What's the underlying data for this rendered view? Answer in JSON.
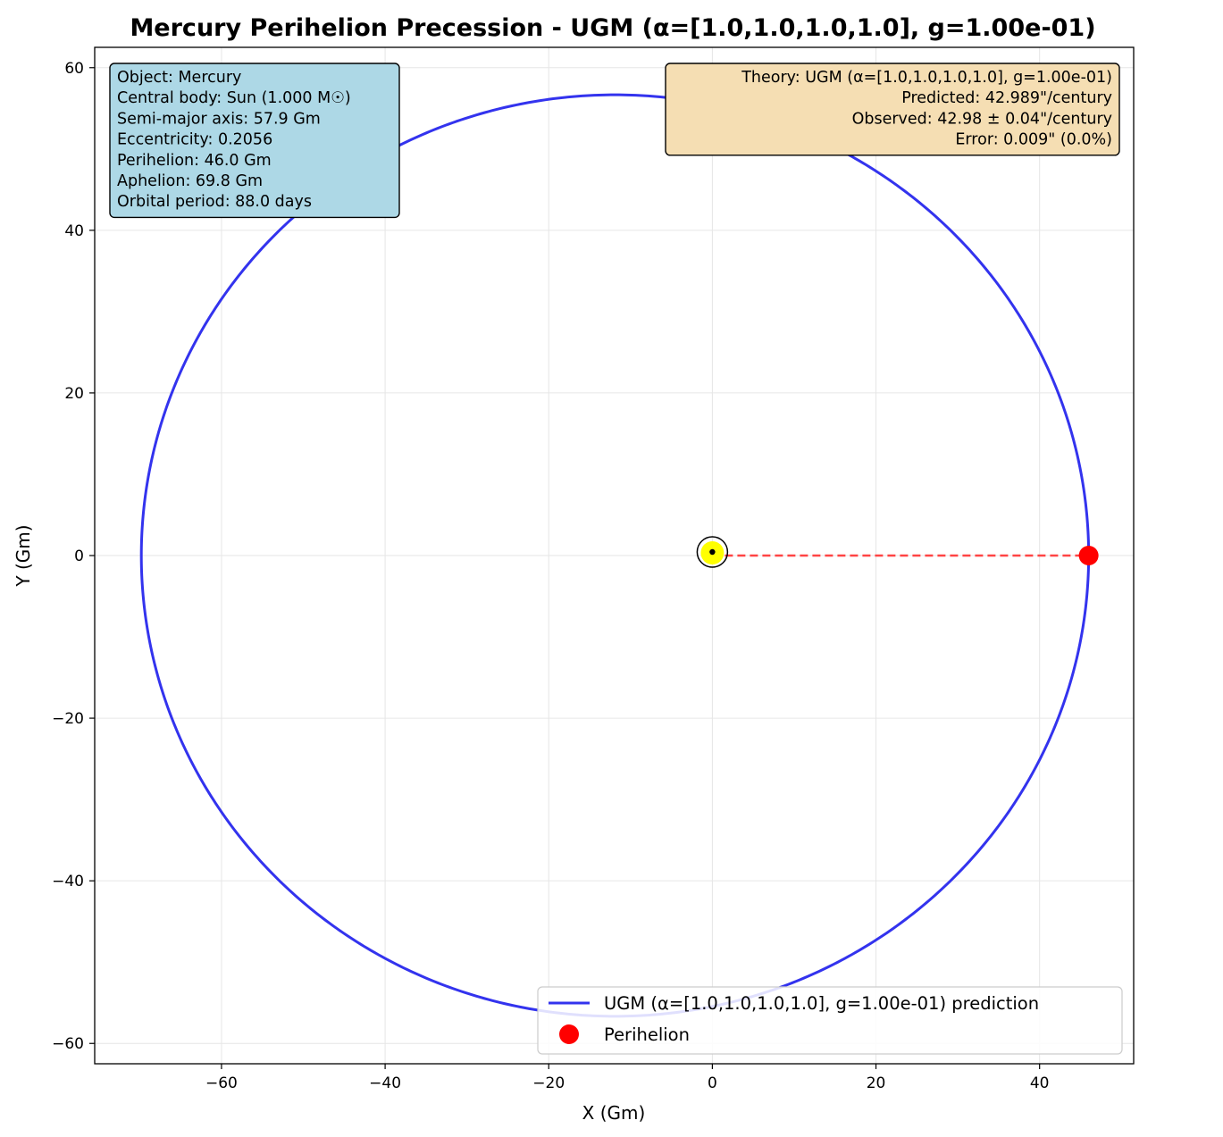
{
  "chart_data": {
    "type": "line",
    "title": "Mercury Perihelion Precession - UGM (α=[1.0,1.0,1.0,1.0], g=1.00e-01)",
    "xlabel": "X (Gm)",
    "ylabel": "Y (Gm)",
    "xlim": [
      -75.5,
      51.5
    ],
    "ylim": [
      -62.5,
      62.5
    ],
    "xticks": [
      -60,
      -40,
      -20,
      0,
      20,
      40
    ],
    "yticks": [
      -60,
      -40,
      -20,
      0,
      20,
      40,
      60
    ],
    "xtick_labels": [
      "−60",
      "−40",
      "−20",
      "0",
      "20",
      "40"
    ],
    "ytick_labels": [
      "−60",
      "−40",
      "−20",
      "0",
      "20",
      "40",
      "60"
    ],
    "grid": true,
    "legend_position": "lower-right",
    "orbit": {
      "semi_major_axis": 57.9,
      "eccentricity": 0.2056,
      "perihelion_x": 46.0,
      "perihelion_y": 0,
      "aphelion_x": -69.8,
      "color": "#3333ee"
    },
    "central_body": {
      "x": 0,
      "y": 0,
      "color": "#ffff00"
    },
    "perihelion_line": {
      "x": [
        0,
        46.0
      ],
      "y": [
        0,
        0
      ],
      "color": "#ff4444"
    },
    "perihelion_marker": {
      "x": 46.0,
      "y": 0,
      "color": "#ff0000"
    },
    "series": [
      {
        "name": "UGM (α=[1.0,1.0,1.0,1.0], g=1.00e-01) prediction",
        "color": "#3333ee",
        "marker": "line"
      },
      {
        "name": "Perihelion",
        "color": "#ff0000",
        "marker": "circle"
      }
    ],
    "info_box": {
      "lines": [
        "Object: Mercury",
        "Central body: Sun (1.000 M☉)",
        "Semi-major axis: 57.9 Gm",
        "Eccentricity: 0.2056",
        "Perihelion: 46.0 Gm",
        "Aphelion: 69.8 Gm",
        "Orbital period: 88.0 days"
      ],
      "color": "#add8e6"
    },
    "theory_box": {
      "lines": [
        "Theory: UGM (α=[1.0,1.0,1.0,1.0], g=1.00e-01)",
        "Predicted: 42.989\"/century",
        "Observed: 42.98 ± 0.04\"/century",
        "Error: 0.009\" (0.0%)"
      ],
      "color": "#f5deb3"
    }
  }
}
